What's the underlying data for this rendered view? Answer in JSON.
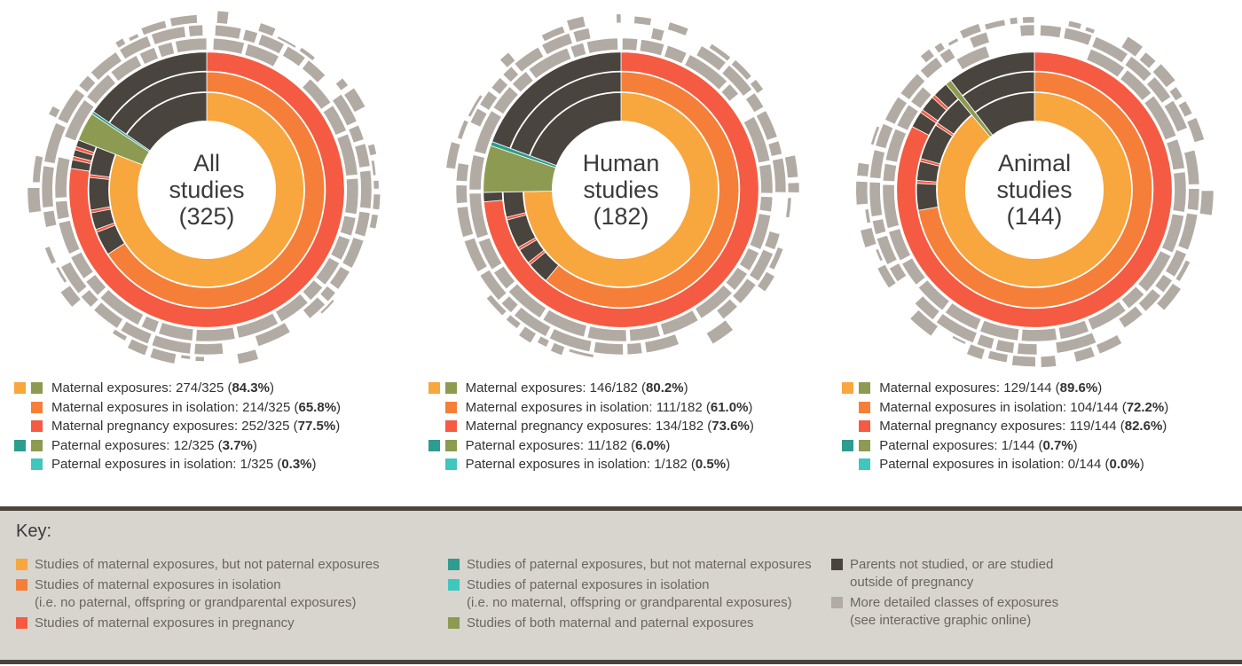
{
  "colors": {
    "maternal": "#F8A63E",
    "isolation": "#F57F39",
    "pregnancy": "#F45B42",
    "paternal": "#2E9C8F",
    "paternal_isolation": "#3FC7BE",
    "both": "#8C9B51",
    "not_studied": "#4A443E",
    "detailed": "#B2ABA4",
    "key_background": "#D8D4CE",
    "key_border": "#4B443D",
    "legend_text": "#333333",
    "key_text": "#6B675F"
  },
  "chart_data": [
    {
      "type": "sunburst",
      "title": "All studies",
      "total": 325,
      "seed": 11,
      "center_lines": [
        "All",
        "studies",
        "(325)"
      ],
      "values": {
        "maternal": 274,
        "maternal_isolation": 214,
        "maternal_pregnancy": 252,
        "paternal": 12,
        "paternal_isolation": 1
      },
      "pct": {
        "maternal": 84.3,
        "maternal_isolation": 65.8,
        "maternal_pregnancy": 77.5,
        "paternal": 3.7,
        "paternal_isolation": 0.3,
        "both_estimated": 3.4
      },
      "legend_rows": [
        {
          "swatches": [
            "maternal",
            "both"
          ],
          "label": "Maternal exposures:",
          "value": "274/325",
          "pct": "84.3%"
        },
        {
          "swatches": [
            "isolation"
          ],
          "label": "Maternal exposures in isolation:",
          "value": "214/325",
          "pct": "65.8%"
        },
        {
          "swatches": [
            "pregnancy"
          ],
          "label": "Maternal pregnancy exposures:",
          "value": "252/325",
          "pct": "77.5%"
        },
        {
          "swatches": [
            "paternal",
            "both"
          ],
          "label": "Paternal exposures:",
          "value": "12/325",
          "pct": "3.7%"
        },
        {
          "swatches": [
            "paternal_isolation"
          ],
          "label": "Paternal exposures in isolation:",
          "value": "1/325",
          "pct": "0.3%"
        }
      ]
    },
    {
      "type": "sunburst",
      "title": "Human studies",
      "total": 182,
      "seed": 23,
      "center_lines": [
        "Human",
        "studies",
        "(182)"
      ],
      "values": {
        "maternal": 146,
        "maternal_isolation": 111,
        "maternal_pregnancy": 134,
        "paternal": 11,
        "paternal_isolation": 1
      },
      "pct": {
        "maternal": 80.2,
        "maternal_isolation": 61.0,
        "maternal_pregnancy": 73.6,
        "paternal": 6.0,
        "paternal_isolation": 0.5,
        "both_estimated": 5.5
      },
      "legend_rows": [
        {
          "swatches": [
            "maternal",
            "both"
          ],
          "label": "Maternal exposures:",
          "value": "146/182",
          "pct": "80.2%"
        },
        {
          "swatches": [
            "isolation"
          ],
          "label": "Maternal exposures in isolation:",
          "value": "111/182",
          "pct": "61.0%"
        },
        {
          "swatches": [
            "pregnancy"
          ],
          "label": "Maternal pregnancy exposures:",
          "value": "134/182",
          "pct": "73.6%"
        },
        {
          "swatches": [
            "paternal",
            "both"
          ],
          "label": "Paternal exposures:",
          "value": "11/182",
          "pct": "6.0%"
        },
        {
          "swatches": [
            "paternal_isolation"
          ],
          "label": "Paternal exposures in isolation:",
          "value": "1/182",
          "pct": "0.5%"
        }
      ]
    },
    {
      "type": "sunburst",
      "title": "Animal studies",
      "total": 144,
      "seed": 37,
      "center_lines": [
        "Animal",
        "studies",
        "(144)"
      ],
      "values": {
        "maternal": 129,
        "maternal_isolation": 104,
        "maternal_pregnancy": 119,
        "paternal": 1,
        "paternal_isolation": 0
      },
      "pct": {
        "maternal": 89.6,
        "maternal_isolation": 72.2,
        "maternal_pregnancy": 82.6,
        "paternal": 0.7,
        "paternal_isolation": 0.0,
        "both_estimated": 0.7
      },
      "legend_rows": [
        {
          "swatches": [
            "maternal",
            "both"
          ],
          "label": "Maternal exposures:",
          "value": "129/144",
          "pct": "89.6%"
        },
        {
          "swatches": [
            "isolation"
          ],
          "label": "Maternal exposures in isolation:",
          "value": "104/144",
          "pct": "72.2%"
        },
        {
          "swatches": [
            "pregnancy"
          ],
          "label": "Maternal pregnancy exposures:",
          "value": "119/144",
          "pct": "82.6%"
        },
        {
          "swatches": [
            "paternal",
            "both"
          ],
          "label": "Paternal exposures:",
          "value": "1/144",
          "pct": "0.7%"
        },
        {
          "swatches": [
            "paternal_isolation"
          ],
          "label": "Paternal exposures in isolation:",
          "value": "0/144",
          "pct": "0.0%"
        }
      ]
    }
  ],
  "key": {
    "title": "Key:",
    "columns": [
      [
        {
          "color": "maternal",
          "lines": [
            "Studies of maternal exposures, but not paternal exposures"
          ]
        },
        {
          "color": "isolation",
          "lines": [
            "Studies of maternal exposures in isolation",
            "(i.e. no paternal, offspring or grandparental exposures)"
          ]
        },
        {
          "color": "pregnancy",
          "lines": [
            "Studies of maternal exposures in pregnancy"
          ]
        }
      ],
      [
        {
          "color": "paternal",
          "lines": [
            "Studies of paternal exposures, but not maternal exposures"
          ]
        },
        {
          "color": "paternal_isolation",
          "lines": [
            "Studies of paternal exposures in isolation",
            "(i.e. no maternal, offspring or grandparental exposures)"
          ]
        },
        {
          "color": "both",
          "lines": [
            "Studies of both maternal and paternal exposures"
          ]
        }
      ],
      [
        {
          "color": "not_studied",
          "lines": [
            "Parents not studied, or are studied",
            "outside of pregnancy"
          ]
        },
        {
          "color": "detailed",
          "lines": [
            "More detailed classes of exposures",
            "(see interactive graphic online)"
          ]
        }
      ]
    ]
  }
}
